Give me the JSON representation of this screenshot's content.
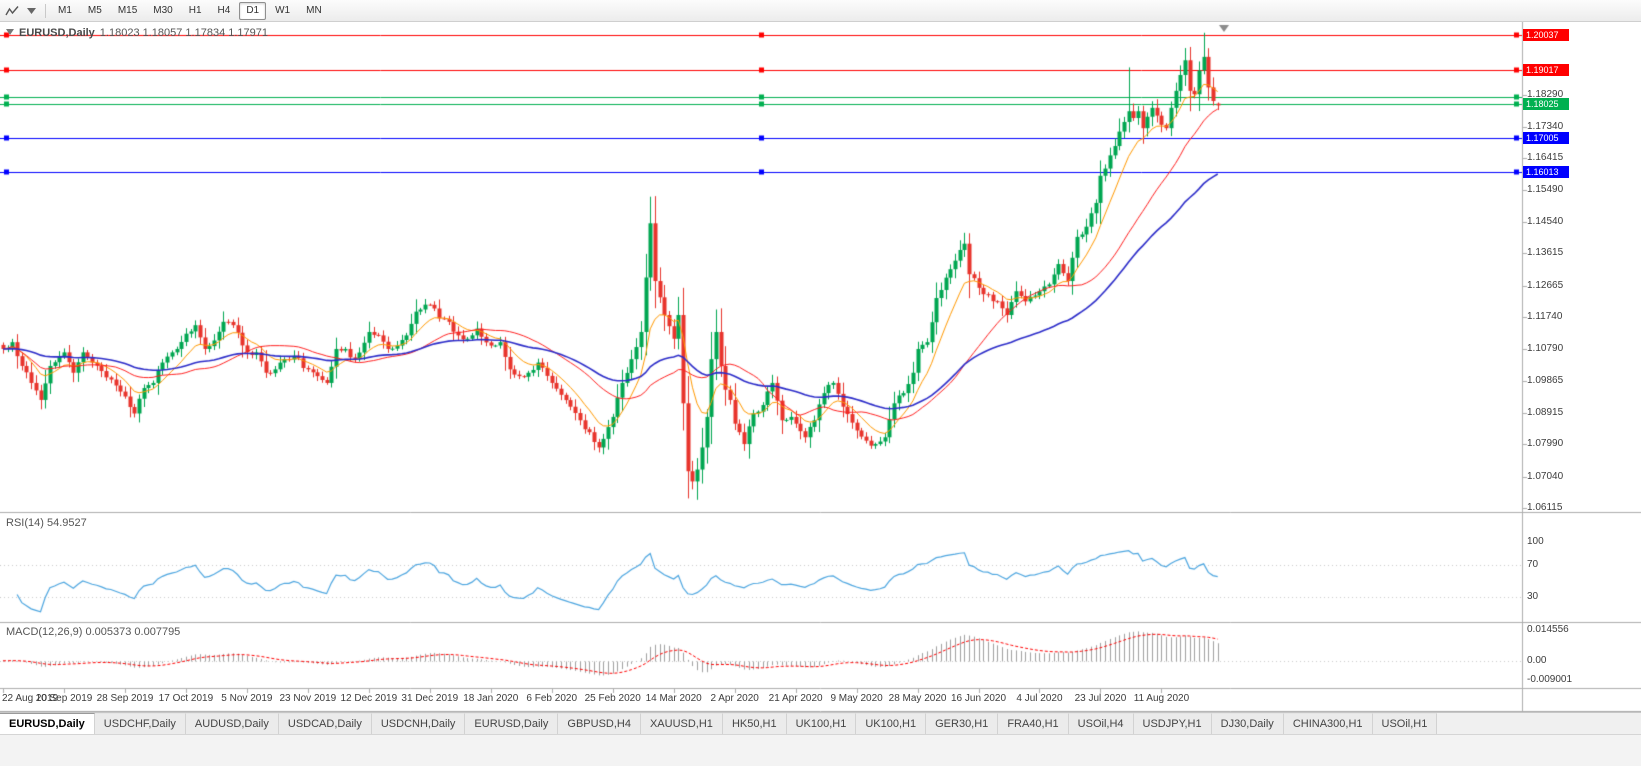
{
  "toolbar": {
    "timeframes": [
      "M1",
      "M5",
      "M15",
      "M30",
      "H1",
      "H4",
      "D1",
      "W1",
      "MN"
    ],
    "active_timeframe": "D1",
    "icons": [
      "chart-line-icon",
      "dropdown-caret-icon"
    ]
  },
  "ui": {
    "chart_title": "EURUSD,Daily",
    "chart_ohlc": "1.18023 1.18057 1.17834 1.17971",
    "rsi_label": "RSI(14)",
    "rsi_value": "54.9527",
    "macd_label": "MACD(12,26,9)",
    "macd_values": "0.005373 0.007795"
  },
  "tabs": [
    {
      "label": "EURUSD,Daily",
      "active": true
    },
    {
      "label": "USDCHF,Daily",
      "active": false
    },
    {
      "label": "AUDUSD,Daily",
      "active": false
    },
    {
      "label": "USDCAD,Daily",
      "active": false
    },
    {
      "label": "USDCNH,Daily",
      "active": false
    },
    {
      "label": "EURUSD,Daily",
      "active": false
    },
    {
      "label": "GBPUSD,H4",
      "active": false
    },
    {
      "label": "XAUUSD,H1",
      "active": false
    },
    {
      "label": "HK50,H1",
      "active": false
    },
    {
      "label": "UK100,H1",
      "active": false
    },
    {
      "label": "UK100,H1",
      "active": false
    },
    {
      "label": "GER30,H1",
      "active": false
    },
    {
      "label": "FRA40,H1",
      "active": false
    },
    {
      "label": "USOil,H4",
      "active": false
    },
    {
      "label": "USDJPY,H1",
      "active": false
    },
    {
      "label": "DJ30,Daily",
      "active": false
    },
    {
      "label": "CHINA300,H1",
      "active": false
    },
    {
      "label": "USOil,H1",
      "active": false
    }
  ],
  "chart_data": {
    "type": "candlestick",
    "symbol": "EURUSD",
    "timeframe": "Daily",
    "bars": 260,
    "y_range": [
      1.06,
      1.2025
    ],
    "last_ohlc": {
      "open": 1.18023,
      "high": 1.18057,
      "low": 1.17834,
      "close": 1.17971
    },
    "y_tick_labels": [
      "1.18290",
      "1.17340",
      "1.16415",
      "1.15490",
      "1.14540",
      "1.13615",
      "1.12665",
      "1.11740",
      "1.10790",
      "1.09865",
      "1.08915",
      "1.07990",
      "1.07040",
      "1.06115"
    ],
    "x_tick_labels": [
      "22 Aug 2019",
      "10 Sep 2019",
      "28 Sep 2019",
      "17 Oct 2019",
      "5 Nov 2019",
      "23 Nov 2019",
      "12 Dec 2019",
      "31 Dec 2019",
      "18 Jan 2020",
      "6 Feb 2020",
      "25 Feb 2020",
      "14 Mar 2020",
      "2 Apr 2020",
      "21 Apr 2020",
      "9 May 2020",
      "28 May 2020",
      "16 Jun 2020",
      "4 Jul 2020",
      "23 Jul 2020",
      "11 Aug 2020"
    ],
    "bars_per_x_tick": 13,
    "close_path": [
      [
        0,
        1.108
      ],
      [
        2,
        1.11
      ],
      [
        4,
        1.103
      ],
      [
        6,
        1.098
      ],
      [
        8,
        1.093
      ],
      [
        10,
        1.103
      ],
      [
        13,
        1.107
      ],
      [
        15,
        1.101
      ],
      [
        17,
        1.107
      ],
      [
        19,
        1.104
      ],
      [
        21,
        1.1015
      ],
      [
        23,
        1.099
      ],
      [
        26,
        1.094
      ],
      [
        28,
        1.089
      ],
      [
        30,
        1.0965
      ],
      [
        32,
        1.098
      ],
      [
        34,
        1.104
      ],
      [
        36,
        1.107
      ],
      [
        39,
        1.1125
      ],
      [
        41,
        1.115
      ],
      [
        43,
        1.108
      ],
      [
        45,
        1.1105
      ],
      [
        47,
        1.116
      ],
      [
        49,
        1.115
      ],
      [
        52,
        1.107
      ],
      [
        54,
        1.107
      ],
      [
        56,
        1.101
      ],
      [
        58,
        1.102
      ],
      [
        60,
        1.105
      ],
      [
        62,
        1.106
      ],
      [
        65,
        1.102
      ],
      [
        67,
        1.1
      ],
      [
        69,
        1.098
      ],
      [
        71,
        1.108
      ],
      [
        73,
        1.108
      ],
      [
        75,
        1.105
      ],
      [
        78,
        1.113
      ],
      [
        80,
        1.112
      ],
      [
        82,
        1.108
      ],
      [
        84,
        1.109
      ],
      [
        86,
        1.112
      ],
      [
        88,
        1.119
      ],
      [
        91,
        1.121
      ],
      [
        93,
        1.117
      ],
      [
        95,
        1.116
      ],
      [
        97,
        1.112
      ],
      [
        99,
        1.111
      ],
      [
        101,
        1.114
      ],
      [
        104,
        1.109
      ],
      [
        106,
        1.11
      ],
      [
        108,
        1.102
      ],
      [
        110,
        1.1
      ],
      [
        112,
        1.101
      ],
      [
        114,
        1.104
      ],
      [
        117,
        1.098
      ],
      [
        119,
        1.0945
      ],
      [
        121,
        1.091
      ],
      [
        123,
        1.087
      ],
      [
        125,
        1.0835
      ],
      [
        127,
        1.079
      ],
      [
        129,
        1.085
      ],
      [
        130,
        1.088
      ],
      [
        132,
        1.098
      ],
      [
        134,
        1.105
      ],
      [
        136,
        1.113
      ],
      [
        138,
        1.145
      ],
      [
        139,
        1.128
      ],
      [
        141,
        1.118
      ],
      [
        143,
        1.111
      ],
      [
        144,
        1.118
      ],
      [
        145,
        1.092
      ],
      [
        146,
        1.072
      ],
      [
        147,
        1.069
      ],
      [
        148,
        1.0725
      ],
      [
        149,
        1.079
      ],
      [
        150,
        1.088
      ],
      [
        151,
        1.105
      ],
      [
        152,
        1.113
      ],
      [
        153,
        1.103
      ],
      [
        154,
        1.096
      ],
      [
        155,
        1.093
      ],
      [
        156,
        1.086
      ],
      [
        158,
        1.08
      ],
      [
        160,
        1.089
      ],
      [
        162,
        1.0915
      ],
      [
        164,
        1.098
      ],
      [
        166,
        1.087
      ],
      [
        168,
        1.088
      ],
      [
        169,
        1.086
      ],
      [
        171,
        1.082
      ],
      [
        173,
        1.087
      ],
      [
        175,
        1.095
      ],
      [
        177,
        1.098
      ],
      [
        179,
        1.091
      ],
      [
        182,
        1.084
      ],
      [
        184,
        1.081
      ],
      [
        186,
        1.08
      ],
      [
        188,
        1.082
      ],
      [
        190,
        1.092
      ],
      [
        192,
        1.095
      ],
      [
        194,
        1.101
      ],
      [
        195,
        1.108
      ],
      [
        197,
        1.11
      ],
      [
        199,
        1.123
      ],
      [
        201,
        1.129
      ],
      [
        203,
        1.134
      ],
      [
        205,
        1.139
      ],
      [
        206,
        1.13
      ],
      [
        208,
        1.126
      ],
      [
        210,
        1.124
      ],
      [
        212,
        1.122
      ],
      [
        214,
        1.118
      ],
      [
        216,
        1.125
      ],
      [
        218,
        1.122
      ],
      [
        221,
        1.125
      ],
      [
        223,
        1.127
      ],
      [
        225,
        1.133
      ],
      [
        227,
        1.128
      ],
      [
        229,
        1.141
      ],
      [
        231,
        1.144
      ],
      [
        233,
        1.151
      ],
      [
        234,
        1.159
      ],
      [
        236,
        1.165
      ],
      [
        238,
        1.172
      ],
      [
        240,
        1.178
      ],
      [
        241,
        1.176
      ],
      [
        242,
        1.178
      ],
      [
        243,
        1.173
      ],
      [
        245,
        1.179
      ],
      [
        247,
        1.174
      ],
      [
        248,
        1.173
      ],
      [
        249,
        1.179
      ],
      [
        250,
        1.184
      ],
      [
        252,
        1.193
      ],
      [
        253,
        1.184
      ],
      [
        254,
        1.183
      ],
      [
        255,
        1.19
      ],
      [
        256,
        1.194
      ],
      [
        257,
        1.185
      ],
      [
        258,
        1.181
      ],
      [
        259,
        1.17971
      ]
    ],
    "wick_overrides": [
      {
        "i": 8,
        "low": 1.0926
      },
      {
        "i": 127,
        "low": 1.0778
      },
      {
        "i": 138,
        "high": 1.1495
      },
      {
        "i": 148,
        "low": 1.0636
      },
      {
        "i": 205,
        "high": 1.1422
      },
      {
        "i": 240,
        "high": 1.1909
      },
      {
        "i": 252,
        "high": 1.1966
      },
      {
        "i": 256,
        "high": 1.2011
      }
    ],
    "moving_averages": [
      {
        "period": 9,
        "method": "ema",
        "color": "#FF9900",
        "width": 1
      },
      {
        "period": 25,
        "method": "sma",
        "color": "#FF1F1F",
        "width": 1
      },
      {
        "period": 50,
        "method": "ema",
        "color": "#2C2CC9",
        "width": 1.6
      }
    ],
    "horizontal_lines": [
      {
        "price": 1.20037,
        "color": "#FF0000",
        "label": "1.20037"
      },
      {
        "price": 1.19017,
        "color": "#FF0000",
        "label": "1.19017"
      },
      {
        "price": 1.1822,
        "color": "#00B050",
        "label": null
      },
      {
        "price": 1.18025,
        "color": "#00B050",
        "label": "1.18025"
      },
      {
        "price": 1.17005,
        "color": "#0000FF",
        "label": "1.17005"
      },
      {
        "price": 1.16013,
        "color": "#0000FF",
        "label": "1.16013"
      }
    ],
    "subplots": [
      {
        "type": "line",
        "name": "RSI",
        "label": "RSI(14)",
        "period": 14,
        "last_value": 54.9527,
        "levels": [
          100,
          70,
          30
        ],
        "level_lines": [
          70,
          30
        ],
        "range": [
          0,
          100
        ]
      },
      {
        "type": "macd",
        "name": "MACD",
        "label": "MACD(12,26,9)",
        "fast": 12,
        "slow": 26,
        "signal": 9,
        "macd_last": 0.005373,
        "signal_last": 0.007795,
        "y_tick_labels": [
          "0.014556",
          "0.00",
          "-0.009001"
        ],
        "range": [
          -0.012,
          0.017
        ]
      }
    ],
    "colors": {
      "up": "#00A651",
      "down": "#E8342C",
      "rsi": "#4DA6E0",
      "macd_hist": "#A0A0A0",
      "macd_signal": "#FF0000",
      "grid_dotted": "#C8C8C8",
      "axis_text": "#3C3C3C",
      "separator": "#ADADAD",
      "shift_marker": "#8C8C8C"
    }
  },
  "icons": {
    "toolbar": [
      "chart-line-icon",
      "dropdown-caret-icon"
    ],
    "chart_corner": "one-click-trading-arrow-icon",
    "chart_shift": "chart-shift-marker"
  }
}
